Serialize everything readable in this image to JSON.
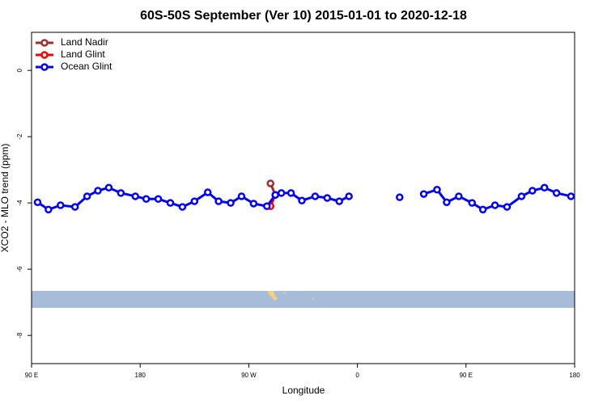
{
  "chart_data": {
    "type": "line",
    "title": "60S-50S September (Ver 10)   2015-01-01 to 2020-12-18",
    "xlabel": "Longitude",
    "ylabel": "XCO2 - MLO trend (ppm)",
    "xlim": [
      90,
      540
    ],
    "ylim": [
      -8.85,
      1.15
    ],
    "xticks": [
      {
        "value": 90,
        "label": "90 E"
      },
      180,
      {
        "value": 270,
        "label": "90 W"
      },
      {
        "value": 360,
        "label": "0"
      },
      {
        "value": 450,
        "label": "90 E"
      },
      {
        "value": 540,
        "label": "180"
      }
    ],
    "yticks": [
      -8,
      -6,
      -4,
      -2,
      0
    ],
    "legend": "top-left",
    "series": [
      {
        "name": "Land Nadir",
        "color": "#a52a2a",
        "x": [
          288,
          292
        ],
        "values": [
          -3.41,
          -3.76
        ]
      },
      {
        "name": "Land Glint",
        "color": "#ff0000",
        "x": [
          288,
          292
        ],
        "values": [
          -4.1,
          -3.76
        ]
      },
      {
        "name": "Ocean Glint",
        "color": "#0000ff",
        "x": [
          95,
          104,
          114,
          126,
          136,
          145,
          154,
          164,
          176,
          185,
          195,
          205,
          215,
          225,
          236,
          245,
          255,
          264,
          274,
          285,
          292,
          297,
          305,
          314,
          325,
          335,
          345,
          353,
          null,
          395,
          null,
          415,
          426,
          434,
          444,
          455,
          464,
          474,
          484,
          496,
          505,
          515,
          525,
          537
        ],
        "values": [
          -3.98,
          -4.2,
          -4.07,
          -4.12,
          -3.8,
          -3.63,
          -3.54,
          -3.7,
          -3.8,
          -3.88,
          -3.88,
          -4.0,
          -4.12,
          -3.95,
          -3.68,
          -3.95,
          -4.0,
          -3.8,
          -4.02,
          -4.1,
          -3.76,
          -3.7,
          -3.7,
          -3.93,
          -3.8,
          -3.85,
          -3.95,
          -3.8,
          null,
          -3.83,
          null,
          -3.73,
          -3.6,
          -3.98,
          -3.8,
          -4.0,
          -4.2,
          -4.07,
          -4.12,
          -3.8,
          -3.63,
          -3.54,
          -3.7,
          -3.8
        ]
      }
    ]
  }
}
